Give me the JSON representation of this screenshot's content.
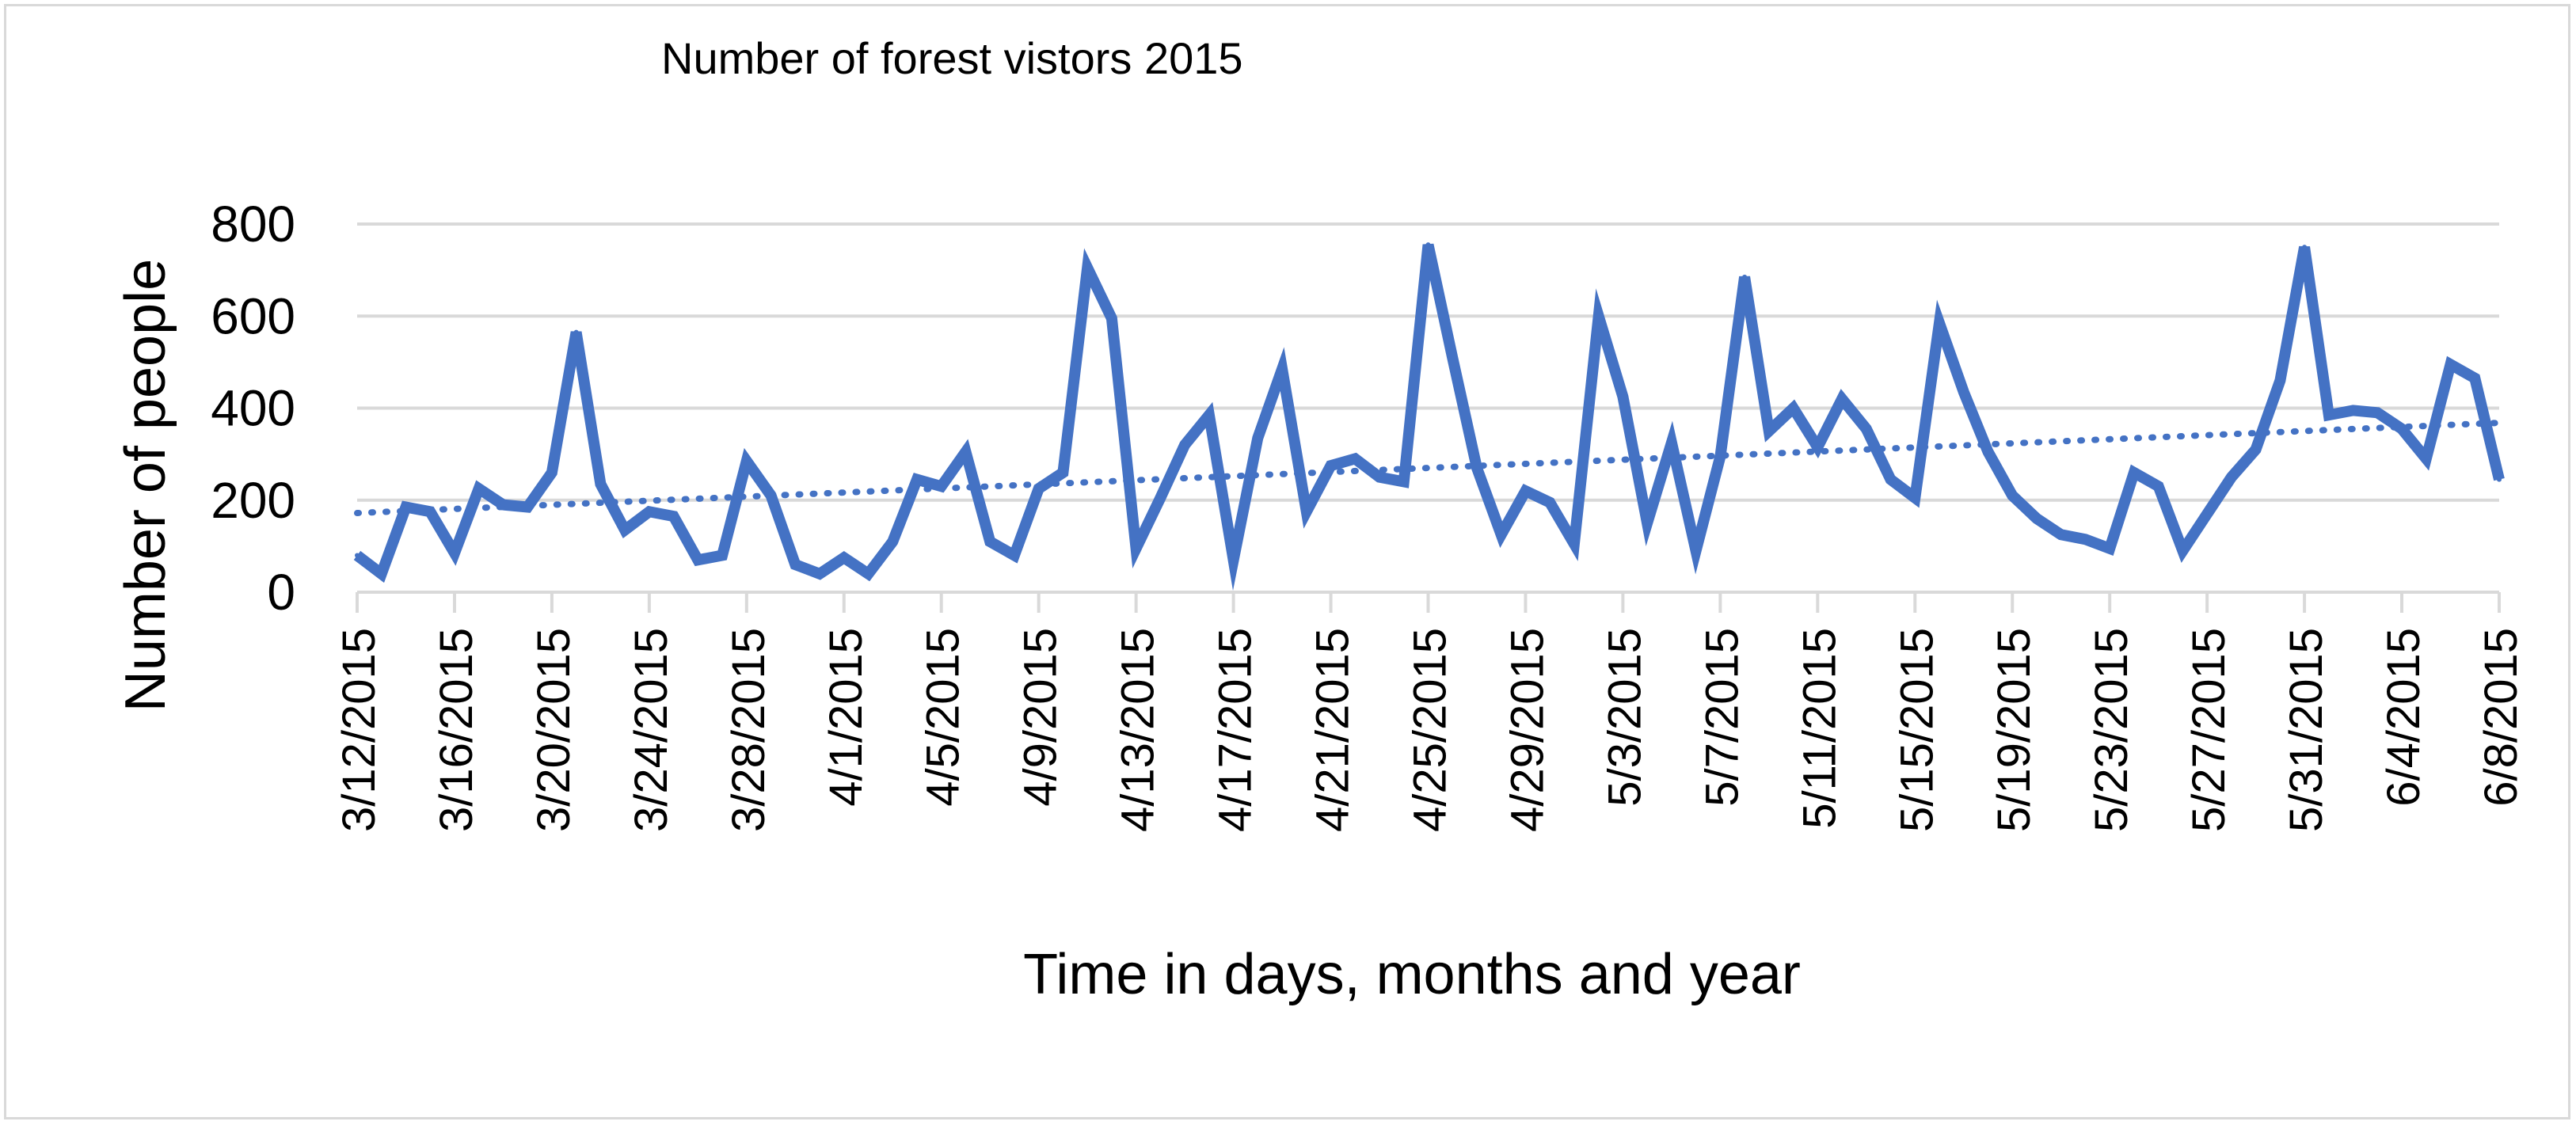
{
  "chart_data": {
    "type": "line",
    "title": "Number of forest vistors 2015",
    "xlabel": "Time in days, months and year",
    "ylabel": "Number of people",
    "ylim": [
      0,
      800
    ],
    "yticks": [
      0,
      200,
      400,
      600,
      800
    ],
    "grid": true,
    "legend": "none",
    "x_tick_labels": [
      "3/12/2015",
      "3/16/2015",
      "3/20/2015",
      "3/24/2015",
      "3/28/2015",
      "4/1/2015",
      "4/5/2015",
      "4/9/2015",
      "4/13/2015",
      "4/17/2015",
      "4/21/2015",
      "4/25/2015",
      "4/29/2015",
      "5/3/2015",
      "5/7/2015",
      "5/11/2015",
      "5/15/2015",
      "5/19/2015",
      "5/23/2015",
      "5/27/2015",
      "5/31/2015",
      "6/4/2015",
      "6/8/2015"
    ],
    "x_start": "3/12/2015",
    "x_end": "6/8/2015",
    "series": [
      {
        "values": [
          80,
          40,
          185,
          175,
          85,
          225,
          190,
          185,
          260,
          565,
          235,
          135,
          175,
          165,
          70,
          80,
          285,
          210,
          60,
          40,
          75,
          40,
          110,
          245,
          230,
          305,
          110,
          80,
          225,
          260,
          705,
          595,
          95,
          205,
          320,
          385,
          70,
          335,
          485,
          175,
          275,
          290,
          250,
          240,
          755,
          510,
          270,
          125,
          220,
          195,
          105,
          600,
          425,
          150,
          325,
          90,
          295,
          685,
          350,
          400,
          315,
          420,
          355,
          245,
          205,
          585,
          435,
          305,
          210,
          160,
          125,
          115,
          95,
          260,
          230,
          90,
          170,
          250,
          310,
          460,
          750,
          385,
          395,
          390,
          355,
          290,
          495,
          465,
          245
        ]
      }
    ],
    "trendline": {
      "style": "dotted",
      "start": 172,
      "end": 368
    },
    "colors": {
      "line": "#4472c4",
      "grid": "#d9d9d9",
      "axis": "#d9d9d9"
    }
  }
}
